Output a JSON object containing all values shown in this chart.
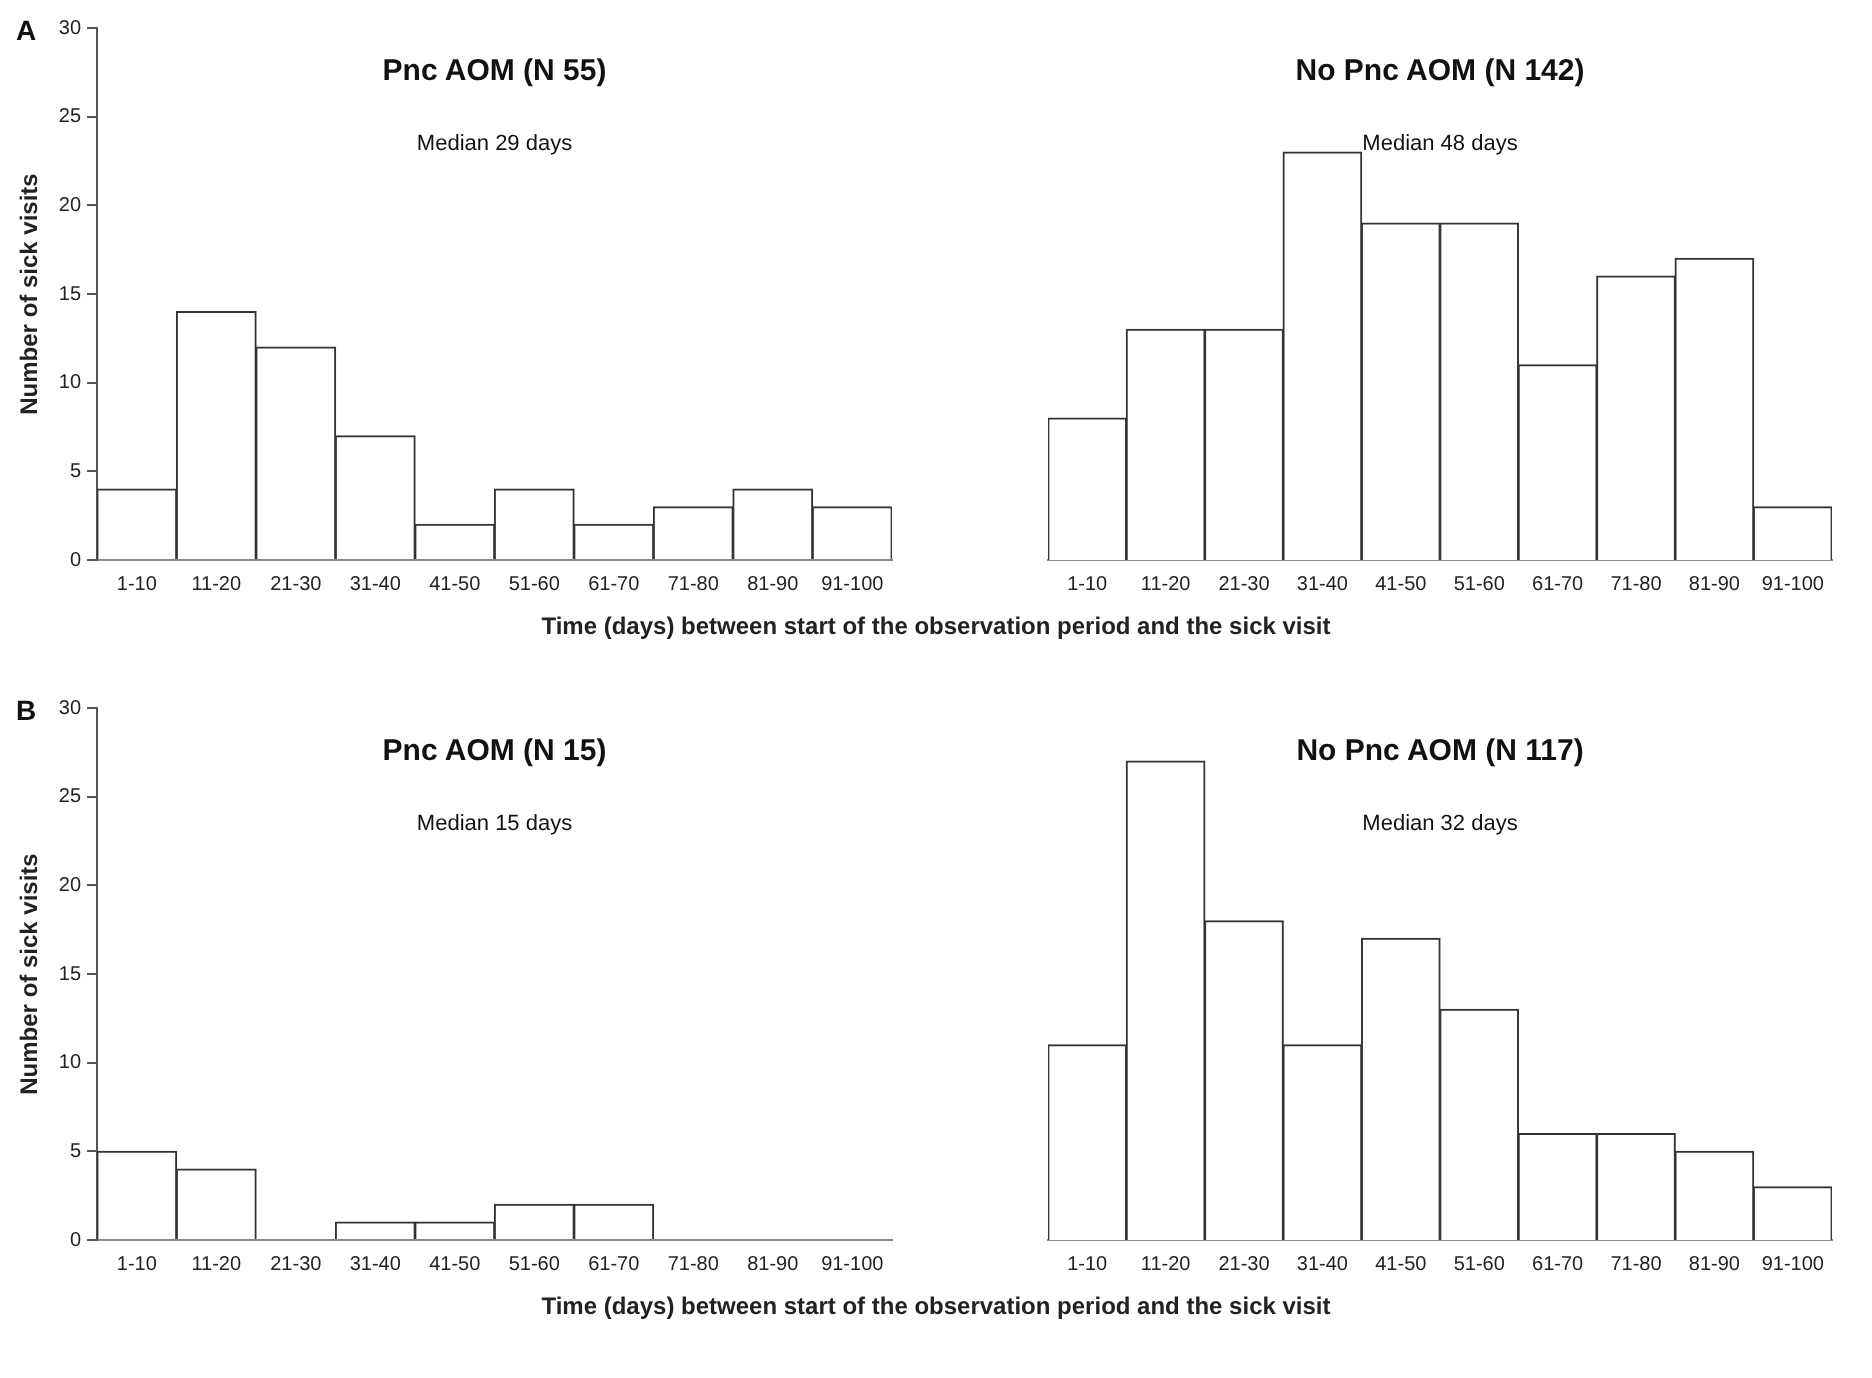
{
  "chart_data": [
    {
      "type": "bar",
      "title": "Pnc AOM (N 55)",
      "ylabel": "Number of sick visits",
      "xlabel": "Time (days) between start of the observation period and the sick visit",
      "annotations": [
        "A",
        "Median 29 days"
      ],
      "categories": [
        "1-10",
        "11-20",
        "21-30",
        "31-40",
        "41-50",
        "51-60",
        "61-70",
        "71-80",
        "81-90",
        "91-100"
      ],
      "values": [
        4,
        14,
        12,
        7,
        2,
        4,
        2,
        3,
        4,
        3
      ],
      "color": "#ffffff",
      "ylim": [
        0,
        30
      ],
      "yticks": [
        0,
        5,
        10,
        15,
        20,
        25,
        30
      ],
      "grid": false,
      "legend": false
    },
    {
      "type": "bar",
      "title": "No Pnc AOM (N 142)",
      "annotations": [
        "Median 48 days"
      ],
      "categories": [
        "1-10",
        "11-20",
        "21-30",
        "31-40",
        "41-50",
        "51-60",
        "61-70",
        "71-80",
        "81-90",
        "91-100"
      ],
      "values": [
        8,
        13,
        13,
        23,
        19,
        19,
        11,
        16,
        17,
        3
      ],
      "color": "#ffffff",
      "ylim": [
        0,
        30
      ],
      "yticks": [
        0,
        5,
        10,
        15,
        20,
        25,
        30
      ],
      "grid": false,
      "legend": false,
      "tick_labels": "x"
    },
    {
      "type": "bar",
      "title": "Pnc AOM (N 15)",
      "ylabel": "Number of sick visits",
      "xlabel": "Time (days) between start of the observation period and the sick visit",
      "annotations": [
        "B",
        "Median 15 days"
      ],
      "categories": [
        "1-10",
        "11-20",
        "21-30",
        "31-40",
        "41-50",
        "51-60",
        "61-70",
        "71-80",
        "81-90",
        "91-100"
      ],
      "values": [
        5,
        4,
        0,
        1,
        1,
        2,
        2,
        0,
        0,
        0
      ],
      "color": "#ffffff",
      "ylim": [
        0,
        30
      ],
      "yticks": [
        0,
        5,
        10,
        15,
        20,
        25,
        30
      ],
      "grid": false,
      "legend": false
    },
    {
      "type": "bar",
      "title": "No Pnc AOM (N 117)",
      "annotations": [
        "Median 32 days"
      ],
      "categories": [
        "1-10",
        "11-20",
        "21-30",
        "31-40",
        "41-50",
        "51-60",
        "61-70",
        "71-80",
        "81-90",
        "91-100"
      ],
      "values": [
        11,
        27,
        18,
        11,
        17,
        13,
        6,
        6,
        5,
        3
      ],
      "color": "#ffffff",
      "ylim": [
        0,
        30
      ],
      "yticks": [
        0,
        5,
        10,
        15,
        20,
        25,
        30
      ],
      "grid": false,
      "legend": false,
      "tick_labels": "x"
    }
  ]
}
